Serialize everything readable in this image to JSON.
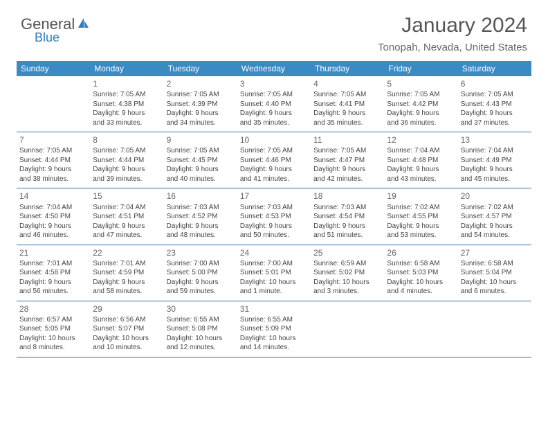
{
  "logo": {
    "text1": "General",
    "text2": "Blue",
    "icon_color": "#2b7bbd"
  },
  "title": "January 2024",
  "location": "Tonopah, Nevada, United States",
  "header_bg": "#3a8ac4",
  "border_color": "#2e6ea5",
  "dayNames": [
    "Sunday",
    "Monday",
    "Tuesday",
    "Wednesday",
    "Thursday",
    "Friday",
    "Saturday"
  ],
  "weeks": [
    [
      null,
      {
        "n": "1",
        "a": "Sunrise: 7:05 AM",
        "b": "Sunset: 4:38 PM",
        "c": "Daylight: 9 hours",
        "d": "and 33 minutes."
      },
      {
        "n": "2",
        "a": "Sunrise: 7:05 AM",
        "b": "Sunset: 4:39 PM",
        "c": "Daylight: 9 hours",
        "d": "and 34 minutes."
      },
      {
        "n": "3",
        "a": "Sunrise: 7:05 AM",
        "b": "Sunset: 4:40 PM",
        "c": "Daylight: 9 hours",
        "d": "and 35 minutes."
      },
      {
        "n": "4",
        "a": "Sunrise: 7:05 AM",
        "b": "Sunset: 4:41 PM",
        "c": "Daylight: 9 hours",
        "d": "and 35 minutes."
      },
      {
        "n": "5",
        "a": "Sunrise: 7:05 AM",
        "b": "Sunset: 4:42 PM",
        "c": "Daylight: 9 hours",
        "d": "and 36 minutes."
      },
      {
        "n": "6",
        "a": "Sunrise: 7:05 AM",
        "b": "Sunset: 4:43 PM",
        "c": "Daylight: 9 hours",
        "d": "and 37 minutes."
      }
    ],
    [
      {
        "n": "7",
        "a": "Sunrise: 7:05 AM",
        "b": "Sunset: 4:44 PM",
        "c": "Daylight: 9 hours",
        "d": "and 38 minutes."
      },
      {
        "n": "8",
        "a": "Sunrise: 7:05 AM",
        "b": "Sunset: 4:44 PM",
        "c": "Daylight: 9 hours",
        "d": "and 39 minutes."
      },
      {
        "n": "9",
        "a": "Sunrise: 7:05 AM",
        "b": "Sunset: 4:45 PM",
        "c": "Daylight: 9 hours",
        "d": "and 40 minutes."
      },
      {
        "n": "10",
        "a": "Sunrise: 7:05 AM",
        "b": "Sunset: 4:46 PM",
        "c": "Daylight: 9 hours",
        "d": "and 41 minutes."
      },
      {
        "n": "11",
        "a": "Sunrise: 7:05 AM",
        "b": "Sunset: 4:47 PM",
        "c": "Daylight: 9 hours",
        "d": "and 42 minutes."
      },
      {
        "n": "12",
        "a": "Sunrise: 7:04 AM",
        "b": "Sunset: 4:48 PM",
        "c": "Daylight: 9 hours",
        "d": "and 43 minutes."
      },
      {
        "n": "13",
        "a": "Sunrise: 7:04 AM",
        "b": "Sunset: 4:49 PM",
        "c": "Daylight: 9 hours",
        "d": "and 45 minutes."
      }
    ],
    [
      {
        "n": "14",
        "a": "Sunrise: 7:04 AM",
        "b": "Sunset: 4:50 PM",
        "c": "Daylight: 9 hours",
        "d": "and 46 minutes."
      },
      {
        "n": "15",
        "a": "Sunrise: 7:04 AM",
        "b": "Sunset: 4:51 PM",
        "c": "Daylight: 9 hours",
        "d": "and 47 minutes."
      },
      {
        "n": "16",
        "a": "Sunrise: 7:03 AM",
        "b": "Sunset: 4:52 PM",
        "c": "Daylight: 9 hours",
        "d": "and 48 minutes."
      },
      {
        "n": "17",
        "a": "Sunrise: 7:03 AM",
        "b": "Sunset: 4:53 PM",
        "c": "Daylight: 9 hours",
        "d": "and 50 minutes."
      },
      {
        "n": "18",
        "a": "Sunrise: 7:03 AM",
        "b": "Sunset: 4:54 PM",
        "c": "Daylight: 9 hours",
        "d": "and 51 minutes."
      },
      {
        "n": "19",
        "a": "Sunrise: 7:02 AM",
        "b": "Sunset: 4:55 PM",
        "c": "Daylight: 9 hours",
        "d": "and 53 minutes."
      },
      {
        "n": "20",
        "a": "Sunrise: 7:02 AM",
        "b": "Sunset: 4:57 PM",
        "c": "Daylight: 9 hours",
        "d": "and 54 minutes."
      }
    ],
    [
      {
        "n": "21",
        "a": "Sunrise: 7:01 AM",
        "b": "Sunset: 4:58 PM",
        "c": "Daylight: 9 hours",
        "d": "and 56 minutes."
      },
      {
        "n": "22",
        "a": "Sunrise: 7:01 AM",
        "b": "Sunset: 4:59 PM",
        "c": "Daylight: 9 hours",
        "d": "and 58 minutes."
      },
      {
        "n": "23",
        "a": "Sunrise: 7:00 AM",
        "b": "Sunset: 5:00 PM",
        "c": "Daylight: 9 hours",
        "d": "and 59 minutes."
      },
      {
        "n": "24",
        "a": "Sunrise: 7:00 AM",
        "b": "Sunset: 5:01 PM",
        "c": "Daylight: 10 hours",
        "d": "and 1 minute."
      },
      {
        "n": "25",
        "a": "Sunrise: 6:59 AM",
        "b": "Sunset: 5:02 PM",
        "c": "Daylight: 10 hours",
        "d": "and 3 minutes."
      },
      {
        "n": "26",
        "a": "Sunrise: 6:58 AM",
        "b": "Sunset: 5:03 PM",
        "c": "Daylight: 10 hours",
        "d": "and 4 minutes."
      },
      {
        "n": "27",
        "a": "Sunrise: 6:58 AM",
        "b": "Sunset: 5:04 PM",
        "c": "Daylight: 10 hours",
        "d": "and 6 minutes."
      }
    ],
    [
      {
        "n": "28",
        "a": "Sunrise: 6:57 AM",
        "b": "Sunset: 5:05 PM",
        "c": "Daylight: 10 hours",
        "d": "and 8 minutes."
      },
      {
        "n": "29",
        "a": "Sunrise: 6:56 AM",
        "b": "Sunset: 5:07 PM",
        "c": "Daylight: 10 hours",
        "d": "and 10 minutes."
      },
      {
        "n": "30",
        "a": "Sunrise: 6:55 AM",
        "b": "Sunset: 5:08 PM",
        "c": "Daylight: 10 hours",
        "d": "and 12 minutes."
      },
      {
        "n": "31",
        "a": "Sunrise: 6:55 AM",
        "b": "Sunset: 5:09 PM",
        "c": "Daylight: 10 hours",
        "d": "and 14 minutes."
      },
      null,
      null,
      null
    ]
  ]
}
